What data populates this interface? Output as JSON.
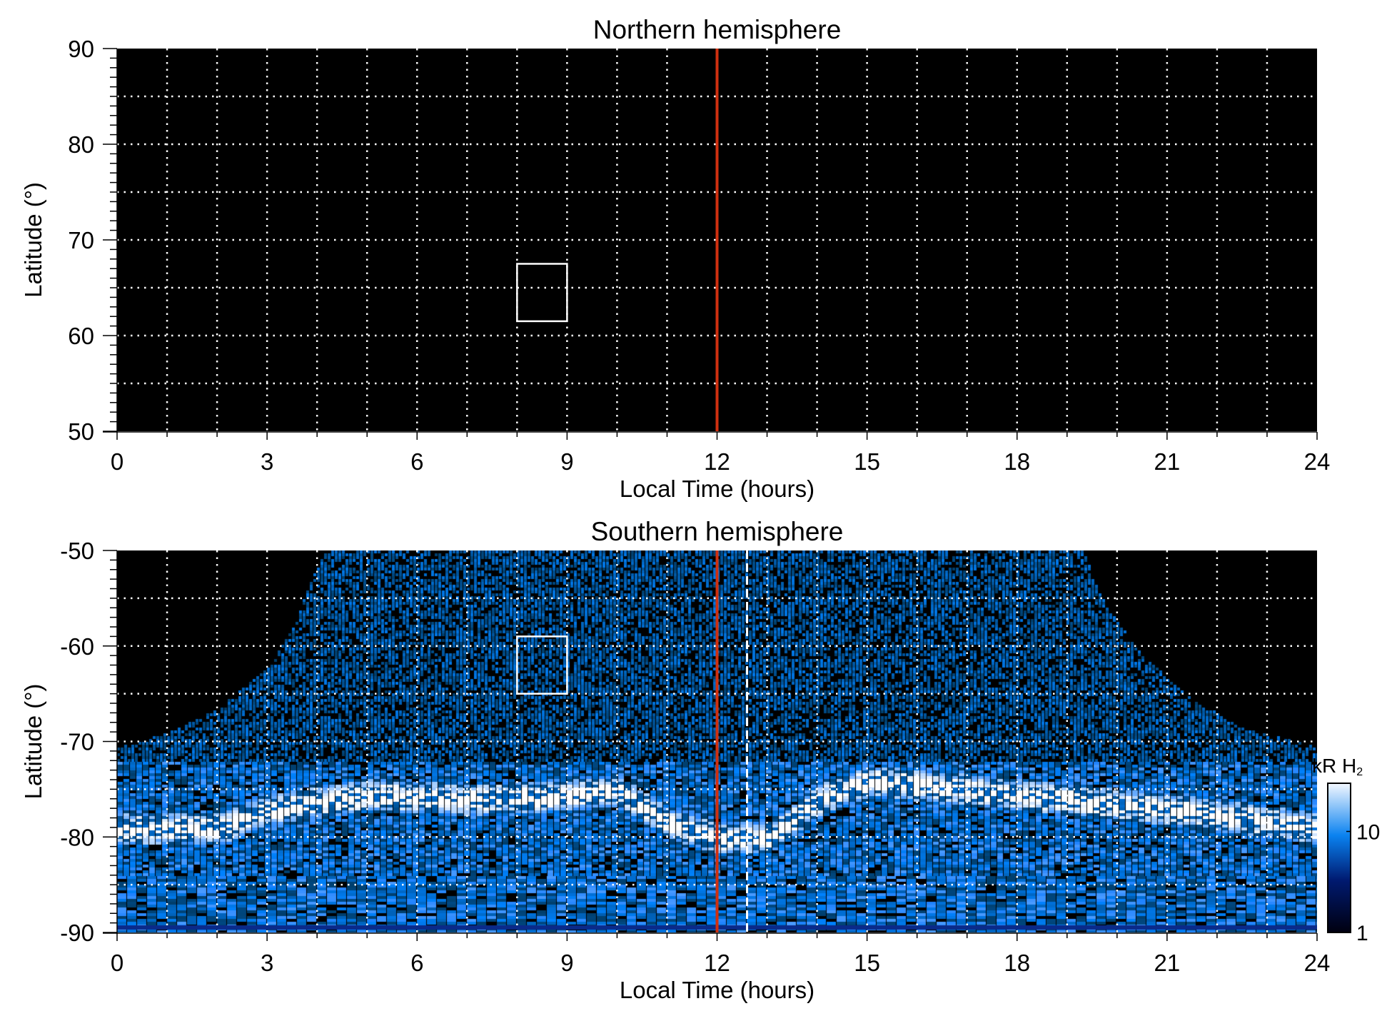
{
  "chart_data": [
    {
      "type": "heatmap",
      "title": "Northern hemisphere",
      "xlabel": "Local Time (hours)",
      "ylabel": "Latitude (°)",
      "xlim": [
        0,
        24
      ],
      "ylim": [
        50,
        90
      ],
      "xticks": [
        "0",
        "3",
        "6",
        "9",
        "12",
        "15",
        "18",
        "21",
        "24"
      ],
      "yticks": [
        "50",
        "60",
        "70",
        "80",
        "90"
      ],
      "grid": true,
      "noon_line": {
        "x": 12,
        "color": "#d03010"
      },
      "box": {
        "x": [
          8,
          9
        ],
        "y": [
          61.5,
          67.5
        ]
      },
      "data_description": "no emission (all black)"
    },
    {
      "type": "heatmap",
      "title": "Southern hemisphere",
      "xlabel": "Local Time (hours)",
      "ylabel": "Latitude (°)",
      "xlim": [
        0,
        24
      ],
      "ylim": [
        -90,
        -50
      ],
      "xticks": [
        "0",
        "3",
        "6",
        "9",
        "12",
        "15",
        "18",
        "21",
        "24"
      ],
      "yticks": [
        "-90",
        "-80",
        "-70",
        "-60",
        "-50"
      ],
      "grid": true,
      "noon_line": {
        "x": 12,
        "color": "#d03010"
      },
      "dashed_line": {
        "x": 12.6
      },
      "box": {
        "x": [
          8,
          9
        ],
        "y": [
          -65,
          -59
        ]
      },
      "coverage_edge_lat": [
        [
          0,
          -70.5
        ],
        [
          1,
          -69
        ],
        [
          2,
          -66.5
        ],
        [
          3,
          -62
        ],
        [
          3.5,
          -58
        ],
        [
          4,
          -51
        ],
        [
          4.2,
          -50
        ],
        [
          19.3,
          -50
        ],
        [
          19.8,
          -56
        ],
        [
          20.5,
          -61
        ],
        [
          21.5,
          -65.5
        ],
        [
          22.5,
          -68.5
        ],
        [
          24,
          -70.5
        ]
      ],
      "auroral_oval": [
        [
          0,
          -79
        ],
        [
          2,
          -79
        ],
        [
          3,
          -77
        ],
        [
          5,
          -75.5
        ],
        [
          7,
          -76
        ],
        [
          9,
          -75.5
        ],
        [
          10,
          -75
        ],
        [
          11,
          -78.5
        ],
        [
          12,
          -80
        ],
        [
          13,
          -80
        ],
        [
          14,
          -76
        ],
        [
          15,
          -74
        ],
        [
          17,
          -75
        ],
        [
          19,
          -76
        ],
        [
          21,
          -77
        ],
        [
          24,
          -79
        ]
      ],
      "colorbar": {
        "label": "kR H",
        "label_sub": "2",
        "ticks": [
          "1",
          "10"
        ],
        "range": [
          1,
          30
        ],
        "scale": "log"
      }
    }
  ]
}
